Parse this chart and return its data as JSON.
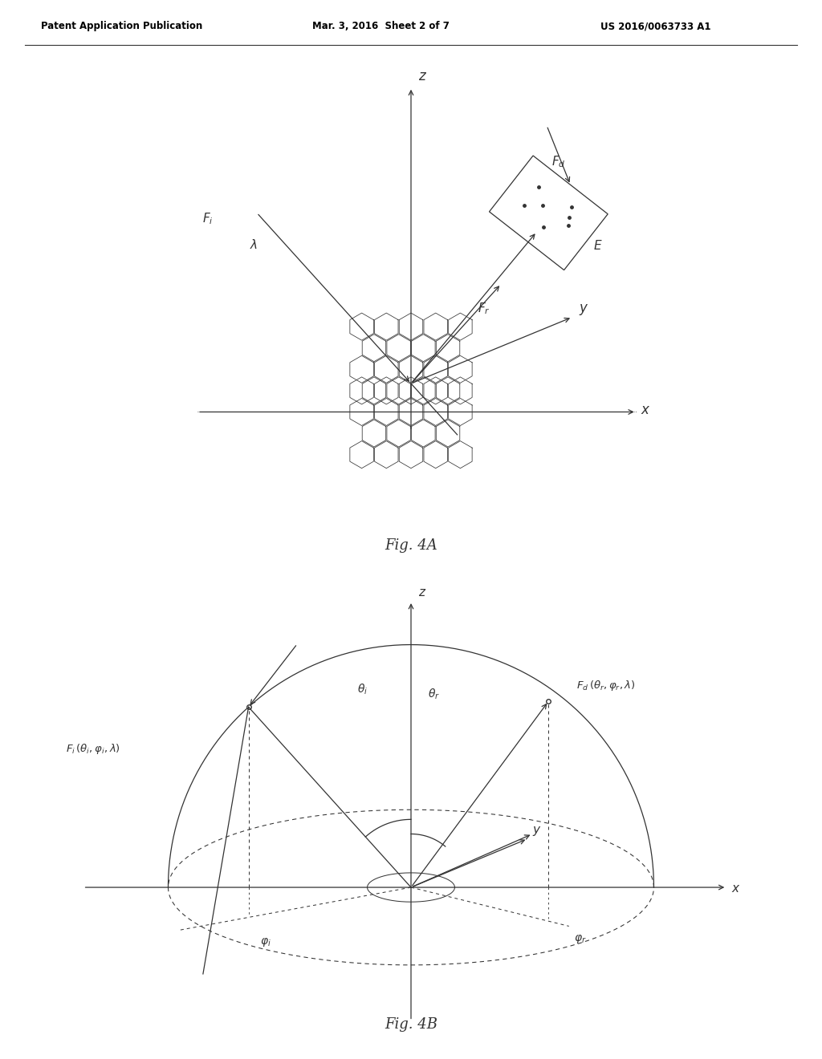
{
  "bg_color": "#ffffff",
  "line_color": "#333333",
  "fig4a_caption": "Fig. 4A",
  "fig4b_caption": "Fig. 4B",
  "header_left": "Patent Application Publication",
  "header_mid": "Mar. 3, 2016  Sheet 2 of 7",
  "header_right": "US 2016/0063733 A1"
}
